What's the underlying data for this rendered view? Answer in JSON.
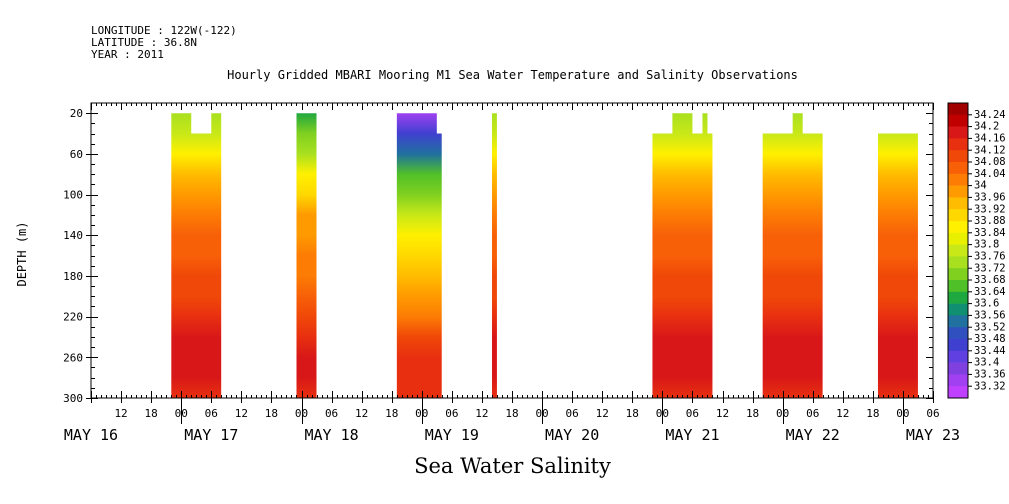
{
  "header": {
    "longitude": "LONGITUDE : 122W(-122)",
    "latitude": "LATITUDE : 36.8N",
    "year": "YEAR : 2011"
  },
  "chart_data": {
    "type": "heatmap",
    "title": "Hourly Gridded MBARI Mooring M1 Sea Water Temperature and Salinity Observations",
    "caption": "Sea Water Salinity",
    "ylabel": "DEPTH (m)",
    "xlabel": "",
    "x_unit": "hours since MAY 16 00:00",
    "xlim": [
      6,
      174
    ],
    "ylim": [
      300,
      10
    ],
    "y_inverted": true,
    "y_ticks": [
      20,
      60,
      100,
      140,
      180,
      220,
      260,
      300
    ],
    "hour_tick_labels": [
      {
        "hour": 12,
        "label": "12"
      },
      {
        "hour": 18,
        "label": "18"
      },
      {
        "hour": 24,
        "label": "00"
      },
      {
        "hour": 30,
        "label": "06"
      },
      {
        "hour": 36,
        "label": "12"
      },
      {
        "hour": 42,
        "label": "18"
      },
      {
        "hour": 48,
        "label": "00"
      },
      {
        "hour": 54,
        "label": "06"
      },
      {
        "hour": 60,
        "label": "12"
      },
      {
        "hour": 66,
        "label": "18"
      },
      {
        "hour": 72,
        "label": "00"
      },
      {
        "hour": 78,
        "label": "06"
      },
      {
        "hour": 84,
        "label": "12"
      },
      {
        "hour": 90,
        "label": "18"
      },
      {
        "hour": 96,
        "label": "00"
      },
      {
        "hour": 102,
        "label": "06"
      },
      {
        "hour": 108,
        "label": "12"
      },
      {
        "hour": 114,
        "label": "18"
      },
      {
        "hour": 120,
        "label": "00"
      },
      {
        "hour": 126,
        "label": "06"
      },
      {
        "hour": 132,
        "label": "12"
      },
      {
        "hour": 138,
        "label": "18"
      },
      {
        "hour": 144,
        "label": "00"
      },
      {
        "hour": 150,
        "label": "06"
      },
      {
        "hour": 156,
        "label": "12"
      },
      {
        "hour": 162,
        "label": "18"
      },
      {
        "hour": 168,
        "label": "00"
      },
      {
        "hour": 174,
        "label": "06"
      }
    ],
    "day_labels": [
      {
        "hour": 6,
        "label": "MAY 16"
      },
      {
        "hour": 30,
        "label": "MAY 17"
      },
      {
        "hour": 54,
        "label": "MAY 18"
      },
      {
        "hour": 78,
        "label": "MAY 19"
      },
      {
        "hour": 102,
        "label": "MAY 20"
      },
      {
        "hour": 126,
        "label": "MAY 21"
      },
      {
        "hour": 150,
        "label": "MAY 22"
      },
      {
        "hour": 174,
        "label": "MAY 23"
      }
    ],
    "colorbar": {
      "labels": [
        "34.24",
        "34.2",
        "34.16",
        "34.12",
        "34.08",
        "34.04",
        "34",
        "33.96",
        "33.92",
        "33.88",
        "33.84",
        "33.8",
        "33.76",
        "33.72",
        "33.68",
        "33.64",
        "33.6",
        "33.56",
        "33.52",
        "33.48",
        "33.44",
        "33.4",
        "33.36",
        "33.32"
      ],
      "colors": [
        "#a00000",
        "#c00000",
        "#d81818",
        "#e83010",
        "#f04808",
        "#f86008",
        "#fc7c04",
        "#ff9a00",
        "#ffbc00",
        "#ffd800",
        "#fff000",
        "#e8f000",
        "#c8e818",
        "#a8e020",
        "#80d020",
        "#50c028",
        "#20a840",
        "#109070",
        "#2070a0",
        "#3050c0",
        "#4040d0",
        "#6040e0",
        "#8040e0",
        "#a040f0",
        "#c040ff"
      ]
    },
    "data_profile": {
      "depths": [
        20,
        40,
        60,
        80,
        100,
        120,
        140,
        160,
        180,
        200,
        220,
        240,
        260,
        280,
        300
      ],
      "values": [
        33.74,
        33.8,
        33.86,
        33.94,
        33.98,
        34.04,
        34.06,
        34.08,
        34.09,
        34.1,
        34.13,
        34.17,
        34.2,
        34.17,
        34.13
      ]
    },
    "segments": [
      {
        "start": 22,
        "end": 32,
        "top_depth": 20,
        "notch": {
          "start": 26,
          "end": 30,
          "top_depth": 40
        }
      },
      {
        "start": 47,
        "end": 51,
        "top_depth": 20,
        "top_offset": -0.12
      },
      {
        "start": 67,
        "end": 76,
        "top_depth": 20,
        "top_offset": -0.38,
        "top_right": {
          "from": 75,
          "top_depth": 40
        }
      },
      {
        "start": 86,
        "end": 87,
        "top_depth": 20
      },
      {
        "start": 118,
        "end": 130,
        "top_depth": 40,
        "bumps": [
          {
            "start": 122,
            "end": 126,
            "top_depth": 20
          },
          {
            "start": 128,
            "end": 129,
            "top_depth": 20
          }
        ]
      },
      {
        "start": 140,
        "end": 152,
        "top_depth": 40,
        "bumps": [
          {
            "start": 146,
            "end": 148,
            "top_depth": 20
          }
        ]
      },
      {
        "start": 163,
        "end": 171,
        "top_depth": 40
      }
    ]
  }
}
